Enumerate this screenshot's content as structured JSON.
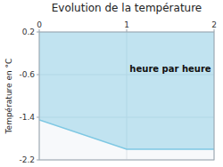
{
  "chart_data": {
    "type": "area",
    "title": "Evolution de la température",
    "y_label": "Température en °C",
    "x": [
      0,
      1,
      2
    ],
    "series": [
      {
        "values": [
          -1.45,
          -2.0,
          -2.0
        ],
        "upper": [
          0.2,
          0.2,
          0.2
        ],
        "color": "#7ec8e3"
      }
    ],
    "xlim": [
      0,
      2
    ],
    "ylim": [
      -2.2,
      0.2
    ],
    "xticks": [
      0,
      1,
      2
    ],
    "yticks": [
      0.2,
      -0.6,
      -1.4,
      -2.2
    ],
    "grid": true,
    "annotations": [
      {
        "text": "heure par heure",
        "x": 1.5,
        "y": -0.5
      }
    ]
  }
}
